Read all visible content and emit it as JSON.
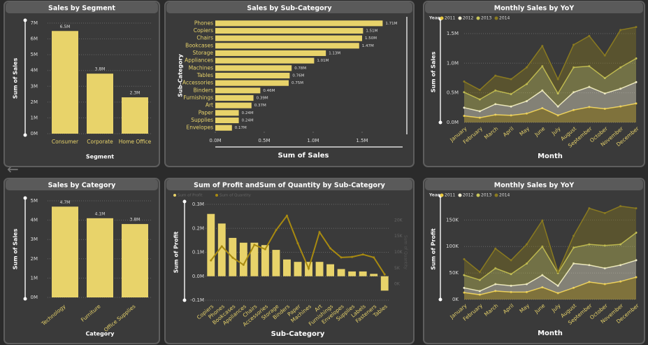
{
  "chart_data": [
    {
      "type": "bar",
      "title": "Sales by Segment",
      "xlabel": "Segment",
      "ylabel": "Sum of Sales",
      "color": "#e8d36a",
      "grid": true,
      "categories": [
        "Consumer",
        "Corporate",
        "Home Office"
      ],
      "values": [
        6.5,
        3.8,
        2.3
      ],
      "value_labels": [
        "6.5M",
        "3.8M",
        "2.3M"
      ],
      "ylim": [
        0,
        7
      ],
      "yticks": [
        {
          "value": 0,
          "label": "0M"
        },
        {
          "value": 1,
          "label": "1M"
        },
        {
          "value": 2,
          "label": "2M"
        },
        {
          "value": 3,
          "label": "3M"
        },
        {
          "value": 4,
          "label": "4M"
        },
        {
          "value": 5,
          "label": "5M"
        },
        {
          "value": 6,
          "label": "6M"
        },
        {
          "value": 7,
          "label": "7M"
        }
      ]
    },
    {
      "type": "barh",
      "title": "Sales by Sub-Category",
      "xlabel": "Sum of Sales",
      "ylabel": "Sub-Category",
      "color": "#e8d36a",
      "categories": [
        "Phones",
        "Copiers",
        "Chairs",
        "Bookcases",
        "Storage",
        "Appliances",
        "Machines",
        "Tables",
        "Accessories",
        "Binders",
        "Furnishings",
        "Art",
        "Paper",
        "Supplies",
        "Envelopes"
      ],
      "values": [
        1.71,
        1.51,
        1.5,
        1.47,
        1.13,
        1.01,
        0.78,
        0.76,
        0.75,
        0.46,
        0.39,
        0.37,
        0.24,
        0.24,
        0.17
      ],
      "value_labels": [
        "1.71M",
        "1.51M",
        "1.50M",
        "1.47M",
        "1.13M",
        "1.01M",
        "0.78M",
        "0.76M",
        "0.75M",
        "0.46M",
        "0.39M",
        "0.37M",
        "0.24M",
        "0.24M",
        "0.17M"
      ],
      "xlim": [
        0,
        1.8
      ],
      "xticks": [
        {
          "value": 0,
          "label": "0.0M"
        },
        {
          "value": 0.5,
          "label": "0.5M"
        },
        {
          "value": 1,
          "label": "1.0M"
        },
        {
          "value": 1.5,
          "label": "1.5M"
        }
      ]
    },
    {
      "type": "area",
      "title": "Monthly Sales by YoY",
      "xlabel": "Month",
      "ylabel": "Sum of Sales",
      "legend_title": "Year",
      "grid": true,
      "categories": [
        "January",
        "February",
        "March",
        "April",
        "May",
        "June",
        "July",
        "August",
        "September",
        "October",
        "November",
        "December"
      ],
      "series": [
        {
          "name": "2011",
          "color": "#e8c840",
          "values": [
            0.11,
            0.08,
            0.13,
            0.12,
            0.15,
            0.24,
            0.12,
            0.21,
            0.26,
            0.23,
            0.27,
            0.32
          ]
        },
        {
          "name": "2012",
          "color": "#f2eed2",
          "values": [
            0.14,
            0.11,
            0.18,
            0.15,
            0.21,
            0.3,
            0.15,
            0.3,
            0.34,
            0.26,
            0.3,
            0.36
          ]
        },
        {
          "name": "2013",
          "color": "#c9c65a",
          "values": [
            0.26,
            0.2,
            0.23,
            0.21,
            0.29,
            0.41,
            0.22,
            0.42,
            0.35,
            0.26,
            0.36,
            0.4
          ]
        },
        {
          "name": "2014",
          "color": "#8a7a20",
          "values": [
            0.18,
            0.16,
            0.25,
            0.25,
            0.28,
            0.34,
            0.24,
            0.38,
            0.51,
            0.38,
            0.63,
            0.53
          ]
        }
      ],
      "ylim": [
        0,
        1.7
      ],
      "yticks": [
        {
          "value": 0,
          "label": "0.0M"
        },
        {
          "value": 0.5,
          "label": "0.5M"
        },
        {
          "value": 1,
          "label": "1.0M"
        },
        {
          "value": 1.5,
          "label": "1.5M"
        }
      ]
    },
    {
      "type": "bar",
      "title": "Sales by Category",
      "xlabel": "Category",
      "ylabel": "Sum of Sales",
      "color": "#e8d36a",
      "grid": true,
      "rotate_labels": true,
      "categories": [
        "Technology",
        "Furniture",
        "Office Supplies"
      ],
      "values": [
        4.7,
        4.1,
        3.8
      ],
      "value_labels": [
        "4.7M",
        "4.1M",
        "3.8M"
      ],
      "ylim": [
        0,
        5
      ],
      "yticks": [
        {
          "value": 0,
          "label": "0M"
        },
        {
          "value": 1,
          "label": "1M"
        },
        {
          "value": 2,
          "label": "2M"
        },
        {
          "value": 3,
          "label": "3M"
        },
        {
          "value": 4,
          "label": "4M"
        },
        {
          "value": 5,
          "label": "5M"
        }
      ]
    },
    {
      "type": "combo",
      "title": "Sum of Profit andSum of Quantity by Sub-Category",
      "xlabel": "Sub-Category",
      "ylabel": "Sum of Profit",
      "y2label": "Sum of Quantity",
      "grid": true,
      "categories": [
        "Copiers",
        "Phones",
        "Bookcases",
        "Appliances",
        "Chairs",
        "Accessories",
        "Storage",
        "Binders",
        "Paper",
        "Machines",
        "Art",
        "Furnishings",
        "Envelopes",
        "Supplies",
        "Labels",
        "Fasteners",
        "Tables"
      ],
      "series": [
        {
          "name": "Sum of Profit",
          "color": "#e8d36a",
          "values": [
            0.26,
            0.22,
            0.16,
            0.14,
            0.14,
            0.13,
            0.11,
            0.07,
            0.06,
            0.06,
            0.06,
            0.05,
            0.03,
            0.02,
            0.02,
            0.01,
            -0.06
          ]
        },
        {
          "name": "Sum of Quantity",
          "color": "#a88a10",
          "axis": "y2",
          "values": [
            7454,
            11870,
            8310,
            6078,
            12336,
            10946,
            16917,
            21429,
            12822,
            4906,
            16301,
            11225,
            8380,
            8543,
            9322,
            8390,
            3083
          ]
        }
      ],
      "ylim": [
        -0.1,
        0.3
      ],
      "yticks": [
        {
          "value": -0.1,
          "label": "-0.1M"
        },
        {
          "value": 0,
          "label": "0.0M"
        },
        {
          "value": 0.1,
          "label": "0.1M"
        },
        {
          "value": 0.2,
          "label": "0.2M"
        },
        {
          "value": 0.3,
          "label": "0.3M"
        }
      ],
      "y2lim": [
        -5000,
        25000
      ],
      "y2ticks": [
        {
          "value": 0,
          "label": "0K"
        },
        {
          "value": 5000,
          "label": "5K"
        },
        {
          "value": 10000,
          "label": "10K"
        },
        {
          "value": 15000,
          "label": "15K"
        },
        {
          "value": 20000,
          "label": "20K"
        }
      ]
    },
    {
      "type": "area",
      "title": "Monthly Sales by YoY",
      "xlabel": "Month",
      "ylabel": "Sum of Profit",
      "legend_title": "Year",
      "grid": true,
      "categories": [
        "January",
        "February",
        "March",
        "April",
        "May",
        "June",
        "July",
        "August",
        "September",
        "October",
        "November",
        "December"
      ],
      "series": [
        {
          "name": "2011",
          "color": "#e8c840",
          "values": [
            13,
            9,
            16,
            14,
            14,
            23,
            12,
            22,
            33,
            29,
            34,
            42
          ]
        },
        {
          "name": "2012",
          "color": "#f2eed2",
          "values": [
            9,
            7,
            13,
            12,
            15,
            23,
            14,
            46,
            32,
            30,
            31,
            32
          ]
        },
        {
          "name": "2013",
          "color": "#c9c65a",
          "values": [
            24,
            21,
            30,
            22,
            39,
            54,
            24,
            30,
            39,
            43,
            39,
            52
          ]
        },
        {
          "name": "2014",
          "color": "#8a7a20",
          "values": [
            30,
            15,
            37,
            26,
            36,
            49,
            2,
            22,
            68,
            61,
            72,
            46
          ]
        }
      ],
      "ylim": [
        0,
        190
      ],
      "yticks": [
        {
          "value": 0,
          "label": "0K"
        },
        {
          "value": 50,
          "label": "50K"
        },
        {
          "value": 100,
          "label": "100K"
        },
        {
          "value": 150,
          "label": "150K"
        }
      ]
    }
  ]
}
